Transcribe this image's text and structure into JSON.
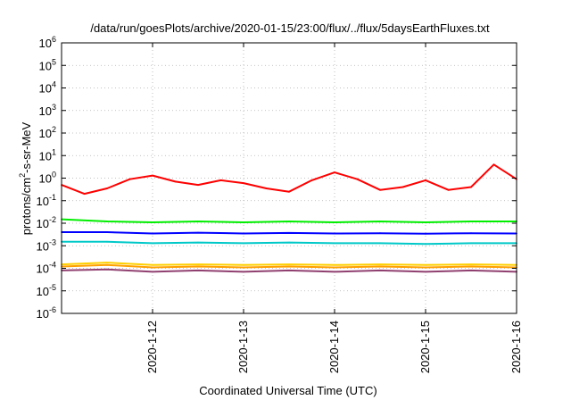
{
  "chart_data": {
    "type": "line",
    "title": "/data/run/goesPlots/archive/2020-01-15/23:00/flux/../flux/5daysEarthFluxes.txt",
    "xlabel": "Coordinated Universal Time (UTC)",
    "ylabel": "protons/cm2-s-sr-MeV",
    "ylabel_parts": {
      "pre": "protons/cm",
      "sup": "2",
      "post": "-s-sr-MeV"
    },
    "y_scale": "log",
    "ylim": [
      1e-06,
      1000000.0
    ],
    "xlim": [
      "2020-01-11",
      "2020-01-16"
    ],
    "grid": true,
    "y_ticks": [
      {
        "base": "10",
        "exp": "-6",
        "value": 1e-06
      },
      {
        "base": "10",
        "exp": "-5",
        "value": 1e-05
      },
      {
        "base": "10",
        "exp": "-4",
        "value": 0.0001
      },
      {
        "base": "10",
        "exp": "-3",
        "value": 0.001
      },
      {
        "base": "10",
        "exp": "-2",
        "value": 0.01
      },
      {
        "base": "10",
        "exp": "-1",
        "value": 0.1
      },
      {
        "base": "10",
        "exp": "0",
        "value": 1.0
      },
      {
        "base": "10",
        "exp": "1",
        "value": 10.0
      },
      {
        "base": "10",
        "exp": "2",
        "value": 100.0
      },
      {
        "base": "10",
        "exp": "3",
        "value": 1000.0
      },
      {
        "base": "10",
        "exp": "4",
        "value": 10000.0
      },
      {
        "base": "10",
        "exp": "5",
        "value": 100000.0
      },
      {
        "base": "10",
        "exp": "6",
        "value": 1000000.0
      }
    ],
    "x_ticks": [
      {
        "label": "2020-1-12",
        "value": "2020-01-12"
      },
      {
        "label": "2020-1-13",
        "value": "2020-01-13"
      },
      {
        "label": "2020-1-14",
        "value": "2020-01-14"
      },
      {
        "label": "2020-1-15",
        "value": "2020-01-15"
      },
      {
        "label": "2020-1-16",
        "value": "2020-01-16"
      }
    ],
    "series": [
      {
        "color": "#ff0000",
        "x": [
          "2020-01-11T00:00",
          "2020-01-11T06:00",
          "2020-01-11T12:00",
          "2020-01-11T18:00",
          "2020-01-12T00:00",
          "2020-01-12T06:00",
          "2020-01-12T12:00",
          "2020-01-12T18:00",
          "2020-01-13T00:00",
          "2020-01-13T06:00",
          "2020-01-13T12:00",
          "2020-01-13T18:00",
          "2020-01-14T00:00",
          "2020-01-14T06:00",
          "2020-01-14T12:00",
          "2020-01-14T18:00",
          "2020-01-15T00:00",
          "2020-01-15T06:00",
          "2020-01-15T12:00",
          "2020-01-15T18:00",
          "2020-01-16T00:00"
        ],
        "values": [
          0.5,
          0.2,
          0.35,
          0.9,
          1.3,
          0.7,
          0.5,
          0.8,
          0.6,
          0.35,
          0.25,
          0.8,
          1.8,
          0.9,
          0.3,
          0.4,
          0.8,
          0.3,
          0.4,
          4.0,
          0.9
        ]
      },
      {
        "color": "#00ee00",
        "x": [
          "2020-01-11T00:00",
          "2020-01-11T12:00",
          "2020-01-12T00:00",
          "2020-01-12T12:00",
          "2020-01-13T00:00",
          "2020-01-13T12:00",
          "2020-01-14T00:00",
          "2020-01-14T12:00",
          "2020-01-15T00:00",
          "2020-01-15T12:00",
          "2020-01-16T00:00"
        ],
        "values": [
          0.015,
          0.012,
          0.011,
          0.012,
          0.011,
          0.012,
          0.011,
          0.012,
          0.011,
          0.012,
          0.012
        ]
      },
      {
        "color": "#0000ff",
        "x": [
          "2020-01-11T00:00",
          "2020-01-11T12:00",
          "2020-01-12T00:00",
          "2020-01-12T12:00",
          "2020-01-13T00:00",
          "2020-01-13T12:00",
          "2020-01-14T00:00",
          "2020-01-14T12:00",
          "2020-01-15T00:00",
          "2020-01-15T12:00",
          "2020-01-16T00:00"
        ],
        "values": [
          0.004,
          0.004,
          0.0035,
          0.0038,
          0.0035,
          0.0037,
          0.0035,
          0.0036,
          0.0034,
          0.0036,
          0.0035
        ]
      },
      {
        "color": "#00c8c8",
        "x": [
          "2020-01-11T00:00",
          "2020-01-11T12:00",
          "2020-01-12T00:00",
          "2020-01-12T12:00",
          "2020-01-13T00:00",
          "2020-01-13T12:00",
          "2020-01-14T00:00",
          "2020-01-14T12:00",
          "2020-01-15T00:00",
          "2020-01-15T12:00",
          "2020-01-16T00:00"
        ],
        "values": [
          0.0015,
          0.0015,
          0.0013,
          0.0014,
          0.0013,
          0.0014,
          0.0013,
          0.0013,
          0.0012,
          0.0013,
          0.0013
        ]
      },
      {
        "color": "#ffd000",
        "x": [
          "2020-01-11T00:00",
          "2020-01-11T12:00",
          "2020-01-12T00:00",
          "2020-01-12T12:00",
          "2020-01-13T00:00",
          "2020-01-13T12:00",
          "2020-01-14T00:00",
          "2020-01-14T12:00",
          "2020-01-15T00:00",
          "2020-01-15T12:00",
          "2020-01-16T00:00"
        ],
        "values": [
          0.00015,
          0.00018,
          0.00014,
          0.00015,
          0.00014,
          0.00015,
          0.00014,
          0.00015,
          0.00014,
          0.00015,
          0.00014
        ]
      },
      {
        "color": "#ffa000",
        "x": [
          "2020-01-11T00:00",
          "2020-01-11T12:00",
          "2020-01-12T00:00",
          "2020-01-12T12:00",
          "2020-01-13T00:00",
          "2020-01-13T12:00",
          "2020-01-14T00:00",
          "2020-01-14T12:00",
          "2020-01-15T00:00",
          "2020-01-15T12:00",
          "2020-01-16T00:00"
        ],
        "values": [
          0.00012,
          0.00014,
          0.00011,
          0.00012,
          0.00011,
          0.00012,
          0.00011,
          0.00012,
          0.00011,
          0.00012,
          0.00011
        ]
      },
      {
        "color": "#904070",
        "x": [
          "2020-01-11T00:00",
          "2020-01-11T12:00",
          "2020-01-12T00:00",
          "2020-01-12T12:00",
          "2020-01-13T00:00",
          "2020-01-13T12:00",
          "2020-01-14T00:00",
          "2020-01-14T12:00",
          "2020-01-15T00:00",
          "2020-01-15T12:00",
          "2020-01-16T00:00"
        ],
        "values": [
          8e-05,
          9e-05,
          7e-05,
          8e-05,
          7e-05,
          8e-05,
          7e-05,
          8e-05,
          7e-05,
          8e-05,
          7e-05
        ]
      }
    ]
  }
}
